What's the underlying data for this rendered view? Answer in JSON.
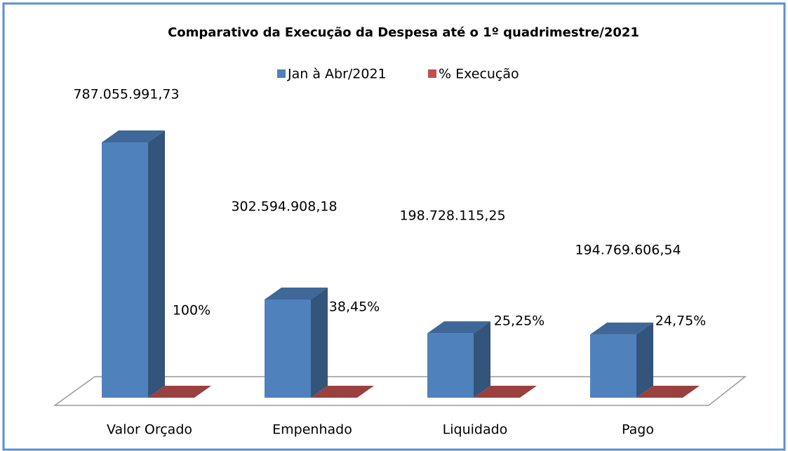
{
  "chart_data": {
    "type": "bar3d",
    "title": "Comparativo da Execução da Despesa até o 1º quadrimestre/2021",
    "categories": [
      "Valor Orçado",
      "Empenhado",
      "Liquidado",
      "Pago"
    ],
    "series": [
      {
        "name": "Jan à Abr/2021",
        "color": "#4f81bd",
        "values": [
          787055991.73,
          302594908.18,
          198728115.25,
          194769606.54
        ],
        "value_labels": [
          "787.055.991,73",
          "302.594.908,18",
          "198.728.115,25",
          "194.769.606,54"
        ]
      },
      {
        "name": "% Execução",
        "color": "#c0504d",
        "values": [
          100,
          38.45,
          25.25,
          24.75
        ],
        "value_labels": [
          "100%",
          "38,45%",
          "25,25%",
          "24,75%"
        ]
      }
    ],
    "legend": "top"
  }
}
